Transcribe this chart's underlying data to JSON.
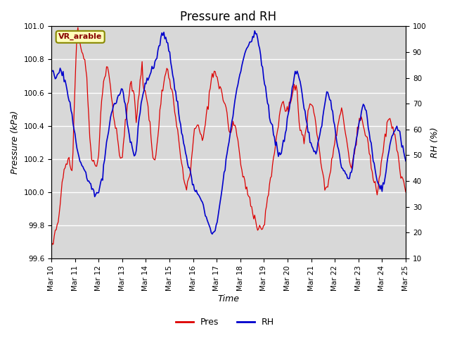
{
  "title": "Pressure and RH",
  "xlabel": "Time",
  "ylabel_left": "Pressure (kPa)",
  "ylabel_right": "RH (%)",
  "annotation_text": "VR_arable",
  "ylim_left": [
    99.6,
    101.0
  ],
  "ylim_right": [
    10,
    100
  ],
  "yticks_left": [
    99.6,
    99.8,
    100.0,
    100.2,
    100.4,
    100.6,
    100.8,
    101.0
  ],
  "yticks_right": [
    10,
    20,
    30,
    40,
    50,
    60,
    70,
    80,
    90,
    100
  ],
  "plot_bg_color": "#d8d8d8",
  "pres_color": "#dd0000",
  "rh_color": "#0000cc",
  "legend_pres": "Pres",
  "legend_rh": "RH",
  "title_fontsize": 12,
  "label_fontsize": 9,
  "tick_fontsize": 7.5,
  "annotation_bbox": {
    "boxstyle": "round,pad=0.3",
    "facecolor": "#ffffbb",
    "edgecolor": "#888800"
  },
  "xtick_labels": [
    "Mar 10",
    "Mar 11",
    "Mar 12",
    "Mar 13",
    "Mar 14",
    "Mar 15",
    "Mar 16",
    "Mar 17",
    "Mar 18",
    "Mar 19",
    "Mar 20",
    "Mar 21",
    "Mar 22",
    "Mar 23",
    "Mar 24",
    "Mar 25"
  ],
  "num_days": 15,
  "pts_per_day": 24
}
